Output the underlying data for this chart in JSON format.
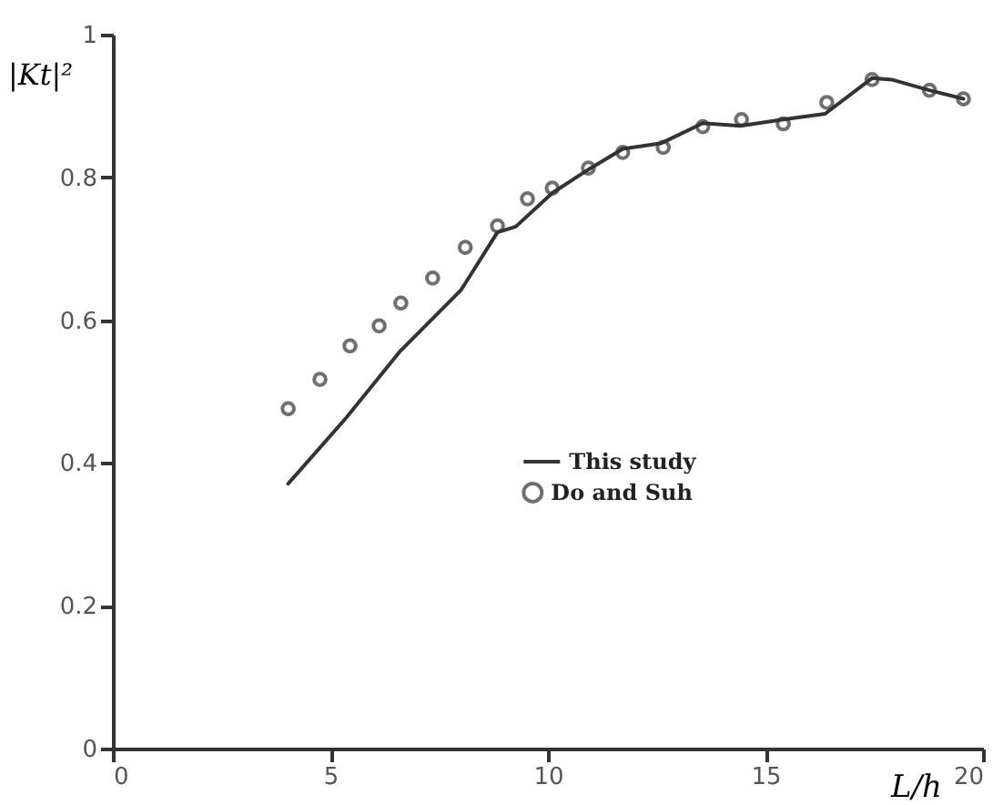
{
  "chart_data": {
    "type": "line",
    "xlabel": "L/h",
    "ylabel": "|Kt|²",
    "xlim": [
      0,
      20
    ],
    "xticks": [
      0,
      5,
      10,
      15,
      20
    ],
    "ylim": [
      0,
      1
    ],
    "yticks": [
      0,
      0.2,
      0.4,
      0.6,
      0.8,
      1
    ],
    "grid": false,
    "legend": "bottom right",
    "series": [
      {
        "name": "This study",
        "type": "line",
        "color": "#333333",
        "line_style": "solid",
        "marker": "none",
        "x": [
          4.03,
          5.36,
          6.61,
          8.0,
          8.84,
          9.26,
          10.1,
          10.93,
          11.72,
          12.61,
          13.56,
          14.42,
          15.4,
          16.37,
          17.45,
          17.9,
          18.77,
          19.55
        ],
        "values": [
          0.371,
          0.463,
          0.557,
          0.642,
          0.723,
          0.731,
          0.778,
          0.811,
          0.84,
          0.848,
          0.876,
          0.872,
          0.881,
          0.889,
          0.939,
          0.937,
          0.922,
          0.91
        ]
      },
      {
        "name": "Do and Suh",
        "type": "scatter",
        "color": "#333333",
        "marker": "circle",
        "x": [
          4.03,
          4.76,
          5.45,
          6.12,
          6.62,
          7.35,
          8.1,
          8.84,
          9.53,
          10.1,
          10.93,
          11.72,
          12.65,
          13.56,
          14.45,
          15.41,
          16.41,
          17.45,
          18.77,
          19.55
        ],
        "values": [
          0.476,
          0.517,
          0.564,
          0.592,
          0.624,
          0.659,
          0.702,
          0.732,
          0.77,
          0.785,
          0.813,
          0.835,
          0.842,
          0.871,
          0.881,
          0.875,
          0.905,
          0.937,
          0.922,
          0.91
        ]
      }
    ]
  }
}
